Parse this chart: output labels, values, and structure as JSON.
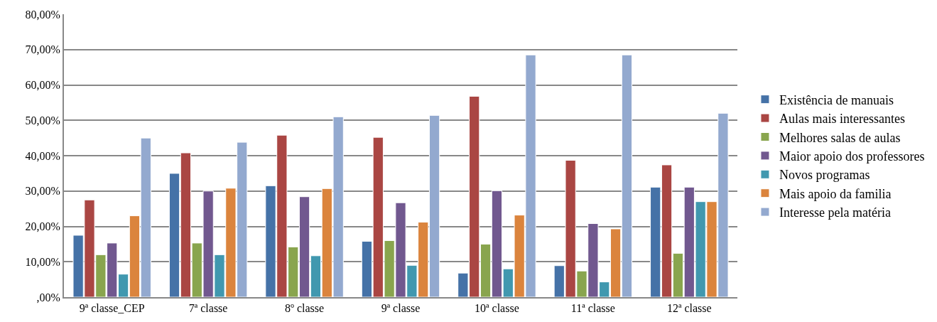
{
  "chart_data": {
    "type": "bar",
    "categories": [
      "9ª classe_CEP",
      "7ª classe",
      "8º classe",
      "9ª classe",
      "10ª classe",
      "11ª classe",
      "12ª classe"
    ],
    "series": [
      {
        "name": "Existência de manuais",
        "color": "#4572a7",
        "values": [
          17.5,
          35,
          31.5,
          15.8,
          6.8,
          8.9,
          31.1
        ]
      },
      {
        "name": "Aulas mais interessantes",
        "color": "#aa4643",
        "values": [
          27.5,
          40.8,
          45.8,
          45.2,
          56.8,
          38.7,
          37.4
        ]
      },
      {
        "name": "Melhores salas de aulas",
        "color": "#89a54e",
        "values": [
          12,
          15.3,
          14.2,
          16,
          15,
          7.4,
          12.4
        ]
      },
      {
        "name": "Maior apoio dos professores",
        "color": "#71588f",
        "values": [
          15.3,
          30,
          28.4,
          26.7,
          30.1,
          20.8,
          31.1
        ]
      },
      {
        "name": "Novos programas",
        "color": "#4198af",
        "values": [
          6.5,
          12,
          11.7,
          9,
          8,
          4.3,
          27
        ]
      },
      {
        "name": "Mais apoio da familia",
        "color": "#db843d",
        "values": [
          23,
          30.8,
          30.7,
          21.2,
          23.2,
          19.3,
          27
        ]
      },
      {
        "name": "Interesse pela matéria",
        "color": "#93a9cf",
        "values": [
          45,
          43.8,
          51,
          51.4,
          68.5,
          68.5,
          52
        ]
      }
    ],
    "ylim": [
      0,
      80
    ],
    "yticks": [
      {
        "value": 0,
        "label": ",00%"
      },
      {
        "value": 10,
        "label": "10,00%"
      },
      {
        "value": 20,
        "label": "20,00%"
      },
      {
        "value": 30,
        "label": "30,00%"
      },
      {
        "value": 40,
        "label": "40,00%"
      },
      {
        "value": 50,
        "label": "50,00%"
      },
      {
        "value": 60,
        "label": "60,00%"
      },
      {
        "value": 70,
        "label": "70,00%"
      },
      {
        "value": 80,
        "label": "80,00%"
      }
    ],
    "grid": "y",
    "legend": "right"
  }
}
